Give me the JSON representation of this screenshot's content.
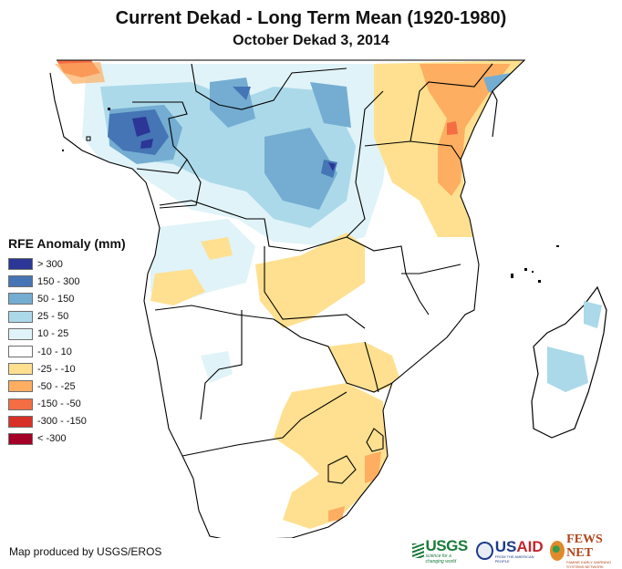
{
  "header": {
    "title": "Current Dekad - Long Term Mean (1920-1980)",
    "subtitle": "October Dekad 3, 2014"
  },
  "legend": {
    "title": "RFE Anomaly (mm)",
    "items": [
      {
        "label": "> 300",
        "color": "#2b3696"
      },
      {
        "label": "150 - 300",
        "color": "#4575b4"
      },
      {
        "label": "50 - 150",
        "color": "#74add1"
      },
      {
        "label": "25 - 50",
        "color": "#abd9e9"
      },
      {
        "label": "10 - 25",
        "color": "#e0f3f8"
      },
      {
        "label": "-10 - 10",
        "color": "#ffffff"
      },
      {
        "label": "-25 - -10",
        "color": "#fee090"
      },
      {
        "label": "-50 - -25",
        "color": "#fdae61"
      },
      {
        "label": "-150 - -50",
        "color": "#f46d43"
      },
      {
        "label": "-300 - -150",
        "color": "#d73027"
      },
      {
        "label": "< -300",
        "color": "#a50026"
      }
    ]
  },
  "map": {
    "region": "Central, East and Southern Africa",
    "variable": "Rainfall Estimate (RFE) anomaly"
  },
  "footer": {
    "credit": "Map produced by USGS/EROS",
    "logos": {
      "usgs": "USGS",
      "usgs_tagline": "science for a changing world",
      "usaid_a": "US",
      "usaid_b": "AID",
      "usaid_tagline": "FROM THE AMERICAN PEOPLE",
      "fews": "FEWS NET",
      "fews_tagline": "FAMINE EARLY WARNING SYSTEMS NETWORK"
    }
  }
}
